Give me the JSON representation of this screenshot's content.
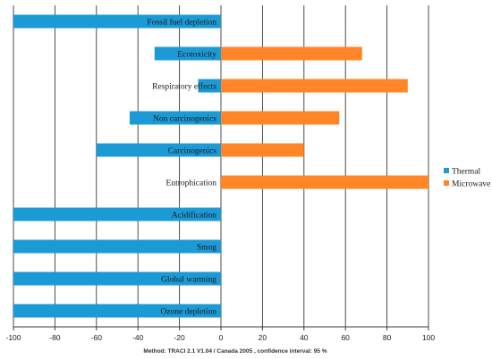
{
  "chart_data": {
    "type": "bar",
    "orientation": "horizontal",
    "categories": [
      "Fossil fuel depletion",
      "Ecotoxicity",
      "Respiratory effects",
      "Non carcinogenics",
      "Carcinogenics",
      "Eutrophication",
      "Acidification",
      "Smog",
      "Global warming",
      "Ozone depletion"
    ],
    "series": [
      {
        "name": "Thermal",
        "color": "#1b9ad6",
        "values": [
          -100,
          -32,
          -11,
          -44,
          -60,
          0,
          -100,
          -100,
          -100,
          -100
        ]
      },
      {
        "name": "Microwave",
        "color": "#ff8527",
        "values": [
          0,
          68,
          90,
          57,
          40,
          100,
          0,
          0,
          0,
          0
        ]
      }
    ],
    "xlim": [
      -100,
      100
    ],
    "xticks": [
      "-100",
      "-80",
      "-60",
      "-40",
      "-20",
      "0",
      "20",
      "40",
      "60",
      "80",
      "100"
    ],
    "grid": true,
    "legend_position": "right",
    "footnote": "Method: TRACI 2.1 V1.04 / Canada 2005 , confidence interval: 95 %"
  }
}
